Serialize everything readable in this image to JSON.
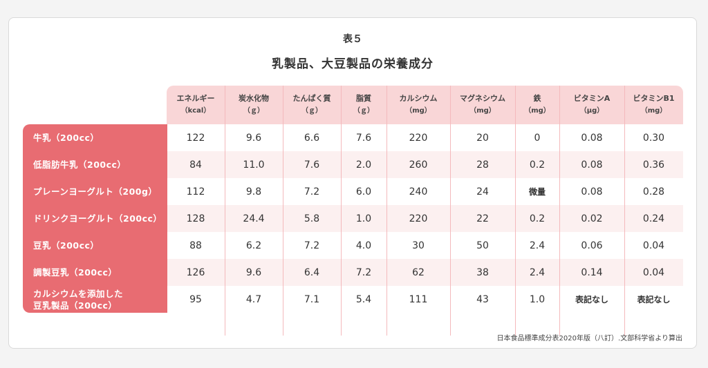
{
  "table_no": "表５",
  "title": "乳製品、大豆製品の栄養成分",
  "columns": [
    {
      "name": "エネルギー",
      "unit": "（kcal）"
    },
    {
      "name": "炭水化物",
      "unit": "（ｇ）"
    },
    {
      "name": "たんぱく質",
      "unit": "（ｇ）"
    },
    {
      "name": "脂質",
      "unit": "（ｇ）"
    },
    {
      "name": "カルシウム",
      "unit": "（mg）"
    },
    {
      "name": "マグネシウム",
      "unit": "（mg）"
    },
    {
      "name": "鉄",
      "unit": "（mg）"
    },
    {
      "name": "ビタミンA",
      "unit": "（μg）"
    },
    {
      "name": "ビタミンB1",
      "unit": "（mg）"
    }
  ],
  "rows": [
    {
      "label": [
        "牛乳（200cc）"
      ],
      "values": [
        "122",
        "9.6",
        "6.6",
        "7.6",
        "220",
        "20",
        "0",
        "0.08",
        "0.30"
      ]
    },
    {
      "label": [
        "低脂肪牛乳（200cc）"
      ],
      "values": [
        "84",
        "11.0",
        "7.6",
        "2.0",
        "260",
        "28",
        "0.2",
        "0.08",
        "0.36"
      ]
    },
    {
      "label": [
        "プレーンヨーグルト（200g）"
      ],
      "values": [
        "112",
        "9.8",
        "7.2",
        "6.0",
        "240",
        "24",
        "微量",
        "0.08",
        "0.28"
      ]
    },
    {
      "label": [
        "ドリンクヨーグルト（200cc）"
      ],
      "values": [
        "128",
        "24.4",
        "5.8",
        "1.0",
        "220",
        "22",
        "0.2",
        "0.02",
        "0.24"
      ]
    },
    {
      "label": [
        "豆乳（200cc）"
      ],
      "values": [
        "88",
        "6.2",
        "7.2",
        "4.0",
        "30",
        "50",
        "2.4",
        "0.06",
        "0.04"
      ]
    },
    {
      "label": [
        "調製豆乳（200cc）"
      ],
      "values": [
        "126",
        "9.6",
        "6.4",
        "7.2",
        "62",
        "38",
        "2.4",
        "0.14",
        "0.04"
      ]
    },
    {
      "label": [
        "カルシウムを添加した",
        "豆乳製品（200cc）"
      ],
      "values": [
        "95",
        "4.7",
        "7.1",
        "5.4",
        "111",
        "43",
        "1.0",
        "表記なし",
        "表記なし"
      ]
    }
  ],
  "source": "日本食品標準成分表2020年版（八訂）.文部科学省より算出",
  "colors": {
    "accent": "#e86c72",
    "header_band": "#f9d6d7",
    "alt_row": "#fcf0f0",
    "divider": "#f4b9bc"
  }
}
